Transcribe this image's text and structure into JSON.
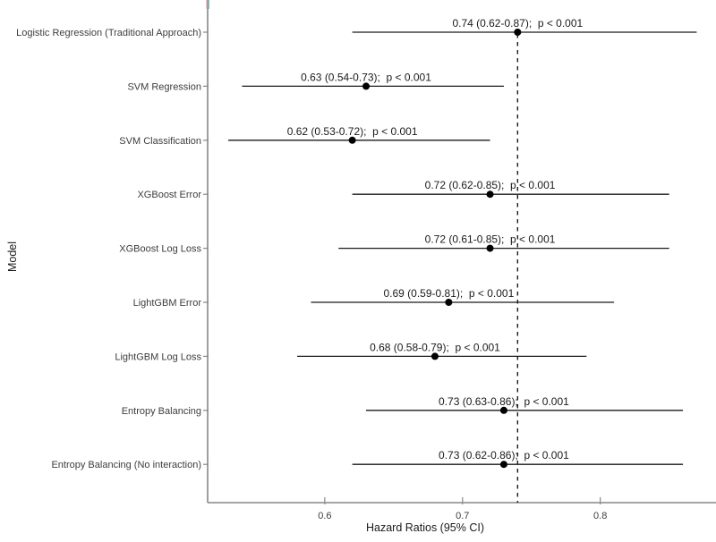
{
  "chart_data": {
    "type": "scatter",
    "subtype": "forest-plot",
    "title": "",
    "xlabel": "Hazard Ratios (95% CI)",
    "ylabel": "Model",
    "x_ticks": [
      "0.6",
      "0.7",
      "0.8"
    ],
    "x_tick_values": [
      0.6,
      0.7,
      0.8
    ],
    "xlim": [
      0.515,
      0.884
    ],
    "reference_line": 0.74,
    "reference_line_style": "dashed",
    "grid": "off",
    "legend": "none",
    "rows": [
      {
        "model": "Logistic Regression (Traditional Approach)",
        "hr": 0.74,
        "ci_low": 0.62,
        "ci_high": 0.87,
        "p": "p < 0.001",
        "annotation": "0.74 (0.62-0.87);  p < 0.001"
      },
      {
        "model": "SVM Regression",
        "hr": 0.63,
        "ci_low": 0.54,
        "ci_high": 0.73,
        "p": "p < 0.001",
        "annotation": "0.63 (0.54-0.73);  p < 0.001"
      },
      {
        "model": "SVM Classification",
        "hr": 0.62,
        "ci_low": 0.53,
        "ci_high": 0.72,
        "p": "p < 0.001",
        "annotation": "0.62 (0.53-0.72);  p < 0.001"
      },
      {
        "model": "XGBoost Error",
        "hr": 0.72,
        "ci_low": 0.62,
        "ci_high": 0.85,
        "p": "p < 0.001",
        "annotation": "0.72 (0.62-0.85);  p < 0.001"
      },
      {
        "model": "XGBoost Log Loss",
        "hr": 0.72,
        "ci_low": 0.61,
        "ci_high": 0.85,
        "p": "p < 0.001",
        "annotation": "0.72 (0.61-0.85);  p < 0.001"
      },
      {
        "model": "LightGBM Error",
        "hr": 0.69,
        "ci_low": 0.59,
        "ci_high": 0.81,
        "p": "p < 0.001",
        "annotation": "0.69 (0.59-0.81);  p < 0.001"
      },
      {
        "model": "LightGBM Log Loss",
        "hr": 0.68,
        "ci_low": 0.58,
        "ci_high": 0.79,
        "p": "p < 0.001",
        "annotation": "0.68 (0.58-0.79);  p < 0.001"
      },
      {
        "model": "Entropy Balancing",
        "hr": 0.73,
        "ci_low": 0.63,
        "ci_high": 0.86,
        "p": "p < 0.001",
        "annotation": "0.73 (0.63-0.86);  p < 0.001"
      },
      {
        "model": "Entropy Balancing (No interaction)",
        "hr": 0.73,
        "ci_low": 0.62,
        "ci_high": 0.86,
        "p": "p < 0.001",
        "annotation": "0.73 (0.62-0.86);  p < 0.001"
      }
    ],
    "colors": {
      "ci_line": "#1a1a1a",
      "point": "#000000",
      "axis_line": "#878787",
      "axis_text": "#3d3d3d",
      "annotation_text": "#1a1a1a",
      "reference_line": "#1a1a1a",
      "axis_cap_teal": "#7fbdbd",
      "axis_cap_pink": "#dda6a6",
      "background": "#ffffff"
    }
  }
}
